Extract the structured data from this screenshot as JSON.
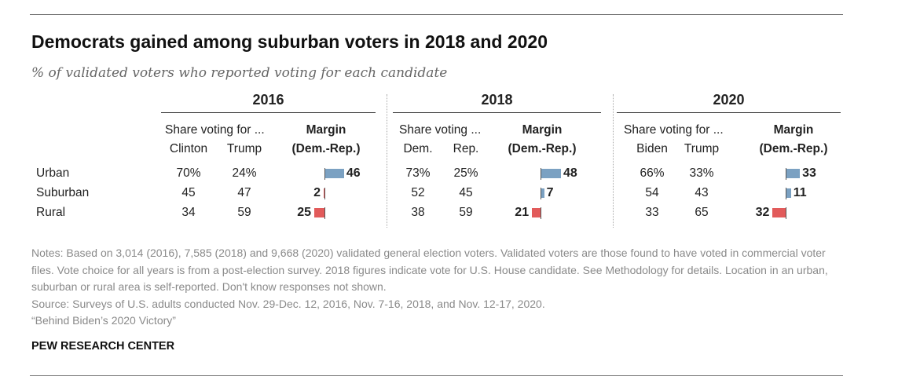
{
  "title": "Democrats gained among suburban voters in 2018 and 2020",
  "subtitle": "% of validated voters who reported voting for each candidate",
  "colors": {
    "dem": "#7ba1c2",
    "rep": "#e25b5b"
  },
  "chart_data": {
    "type": "table",
    "row_labels": [
      "Urban",
      "Suburban",
      "Rural"
    ],
    "panels": [
      {
        "year": "2016",
        "share_label": "Share voting for ...",
        "col_dem": "Clinton",
        "col_rep": "Trump",
        "margin_label": "Margin",
        "margin_sub": "(Dem.-Rep.)",
        "dem": [
          "70%",
          "45",
          "34"
        ],
        "rep": [
          "24%",
          "47",
          "59"
        ],
        "margin": [
          46,
          -2,
          -25
        ],
        "margin_text": [
          "46",
          "2",
          "25"
        ]
      },
      {
        "year": "2018",
        "share_label": "Share voting ...",
        "col_dem": "Dem.",
        "col_rep": "Rep.",
        "margin_label": "Margin",
        "margin_sub": "(Dem.-Rep.)",
        "dem": [
          "73%",
          "52",
          "38"
        ],
        "rep": [
          "25%",
          "45",
          "59"
        ],
        "margin": [
          48,
          7,
          -21
        ],
        "margin_text": [
          "48",
          "7",
          "21"
        ]
      },
      {
        "year": "2020",
        "share_label": "Share voting for ...",
        "col_dem": "Biden",
        "col_rep": "Trump",
        "margin_label": "Margin",
        "margin_sub": "(Dem.-Rep.)",
        "dem": [
          "66%",
          "54",
          "33"
        ],
        "rep": [
          "33%",
          "43",
          "65"
        ],
        "margin": [
          33,
          11,
          -32
        ],
        "margin_text": [
          "33",
          "11",
          "32"
        ]
      }
    ]
  },
  "notes": "Notes: Based on 3,014 (2016), 7,585 (2018) and 9,668 (2020) validated general election voters. Validated voters are those found to have voted in commercial voter files. Vote choice for all years is from a post-election survey. 2018 figures indicate vote for U.S. House candidate. See Methodology for details. Location in an urban, suburban or rural area is self-reported. Don't know responses not shown.",
  "source": "Source: Surveys of U.S. adults conducted Nov. 29-Dec. 12, 2016, Nov. 7-16, 2018, and Nov. 12-17, 2020.",
  "report": "“Behind Biden’s 2020 Victory”",
  "brand": "PEW RESEARCH CENTER"
}
